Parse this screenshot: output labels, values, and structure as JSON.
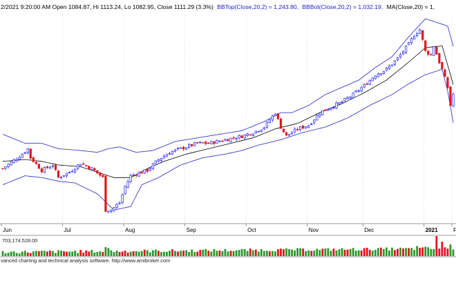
{
  "header": {
    "info_text": "2/2021 9:20:00 AM Open 1084.87, Hi 1113.24, Lo 1082.95, Close 1111.29 (3.3%)",
    "bbtop_text": "BBTop(Close,20,2) = 1,243.80,",
    "bbbot_text": "BBBot(Close,20,2) = 1,032.19,",
    "ma_text": "MA(Close,20) = 1,"
  },
  "volume_panel": {
    "value_text": "703,174,528.00"
  },
  "footer": {
    "credit_text": "vanced charting and technical analysis software. http://www.amibroker.com"
  },
  "colors": {
    "up": "#1a1aff",
    "down": "#e0141e",
    "band": "#3a3ac8",
    "ma": "#000000",
    "volume_up": "#2a9a2a",
    "volume_down": "#e0141e",
    "header_blue": "#1c1ccc"
  },
  "chart_data": {
    "type": "candlestick",
    "x_axis_labels": [
      "Jun",
      "Jul",
      "Aug",
      "Sep",
      "Oct",
      "Nov",
      "Dec",
      "2021",
      "F"
    ],
    "overlays": [
      "BBTop(Close,20,2)",
      "BBBot(Close,20,2)",
      "MA(Close,20)"
    ],
    "ylim": [
      760,
      1330
    ],
    "close_anchors": [
      [
        0,
        905
      ],
      [
        7,
        945
      ],
      [
        9,
        960
      ],
      [
        10,
        935
      ],
      [
        14,
        900
      ],
      [
        18,
        915
      ],
      [
        20,
        880
      ],
      [
        24,
        895
      ],
      [
        28,
        920
      ],
      [
        32,
        905
      ],
      [
        36,
        880
      ],
      [
        37,
        790
      ],
      [
        39,
        790
      ],
      [
        42,
        810
      ],
      [
        44,
        855
      ],
      [
        46,
        885
      ],
      [
        52,
        900
      ],
      [
        56,
        930
      ],
      [
        60,
        950
      ],
      [
        66,
        965
      ],
      [
        70,
        975
      ],
      [
        74,
        975
      ],
      [
        80,
        985
      ],
      [
        86,
        995
      ],
      [
        90,
        1005
      ],
      [
        94,
        1020
      ],
      [
        98,
        1060
      ],
      [
        100,
        1020
      ],
      [
        102,
        995
      ],
      [
        106,
        1015
      ],
      [
        110,
        1025
      ],
      [
        114,
        1060
      ],
      [
        118,
        1075
      ],
      [
        122,
        1090
      ],
      [
        126,
        1110
      ],
      [
        130,
        1135
      ],
      [
        134,
        1165
      ],
      [
        138,
        1180
      ],
      [
        142,
        1210
      ],
      [
        146,
        1250
      ],
      [
        148,
        1275
      ],
      [
        150,
        1290
      ],
      [
        152,
        1230
      ],
      [
        154,
        1220
      ],
      [
        155,
        1245
      ],
      [
        157,
        1200
      ],
      [
        158,
        1180
      ],
      [
        160,
        1130
      ],
      [
        161,
        1080
      ],
      [
        162,
        1111
      ]
    ],
    "bb_top_anchors": [
      [
        0,
        1000
      ],
      [
        8,
        975
      ],
      [
        14,
        975
      ],
      [
        20,
        960
      ],
      [
        28,
        955
      ],
      [
        34,
        950
      ],
      [
        38,
        960
      ],
      [
        42,
        965
      ],
      [
        48,
        950
      ],
      [
        54,
        955
      ],
      [
        62,
        980
      ],
      [
        70,
        990
      ],
      [
        78,
        1000
      ],
      [
        86,
        1010
      ],
      [
        94,
        1035
      ],
      [
        100,
        1060
      ],
      [
        104,
        1060
      ],
      [
        110,
        1080
      ],
      [
        116,
        1110
      ],
      [
        122,
        1130
      ],
      [
        128,
        1150
      ],
      [
        134,
        1185
      ],
      [
        140,
        1215
      ],
      [
        146,
        1270
      ],
      [
        152,
        1320
      ],
      [
        156,
        1310
      ],
      [
        160,
        1300
      ],
      [
        162,
        1243.8
      ]
    ],
    "bb_bot_anchors": [
      [
        0,
        860
      ],
      [
        8,
        885
      ],
      [
        14,
        880
      ],
      [
        20,
        870
      ],
      [
        26,
        865
      ],
      [
        34,
        835
      ],
      [
        40,
        790
      ],
      [
        46,
        800
      ],
      [
        50,
        860
      ],
      [
        56,
        880
      ],
      [
        64,
        915
      ],
      [
        72,
        935
      ],
      [
        80,
        945
      ],
      [
        86,
        955
      ],
      [
        92,
        970
      ],
      [
        100,
        985
      ],
      [
        108,
        1005
      ],
      [
        116,
        1020
      ],
      [
        124,
        1045
      ],
      [
        132,
        1080
      ],
      [
        140,
        1110
      ],
      [
        146,
        1140
      ],
      [
        152,
        1165
      ],
      [
        158,
        1180
      ],
      [
        160,
        1120
      ],
      [
        162,
        1032.19
      ]
    ],
    "ma_anchors": [
      [
        0,
        925
      ],
      [
        8,
        930
      ],
      [
        14,
        925
      ],
      [
        20,
        915
      ],
      [
        28,
        910
      ],
      [
        34,
        895
      ],
      [
        40,
        880
      ],
      [
        46,
        880
      ],
      [
        52,
        905
      ],
      [
        58,
        925
      ],
      [
        66,
        945
      ],
      [
        74,
        960
      ],
      [
        82,
        975
      ],
      [
        90,
        990
      ],
      [
        98,
        1015
      ],
      [
        106,
        1030
      ],
      [
        114,
        1060
      ],
      [
        122,
        1085
      ],
      [
        130,
        1115
      ],
      [
        138,
        1150
      ],
      [
        146,
        1200
      ],
      [
        152,
        1240
      ],
      [
        158,
        1245
      ],
      [
        162,
        1138
      ]
    ],
    "volume_max": 703174528,
    "volume_spikes": [
      [
        37,
        0.45
      ],
      [
        38,
        0.4
      ],
      [
        149,
        0.5
      ],
      [
        152,
        0.47
      ],
      [
        156,
        1.0
      ],
      [
        158,
        0.72
      ],
      [
        161,
        0.58
      ]
    ],
    "bar_count": 163,
    "month_start_bars": [
      0,
      22,
      44,
      66,
      88,
      110,
      130,
      152,
      162
    ]
  }
}
